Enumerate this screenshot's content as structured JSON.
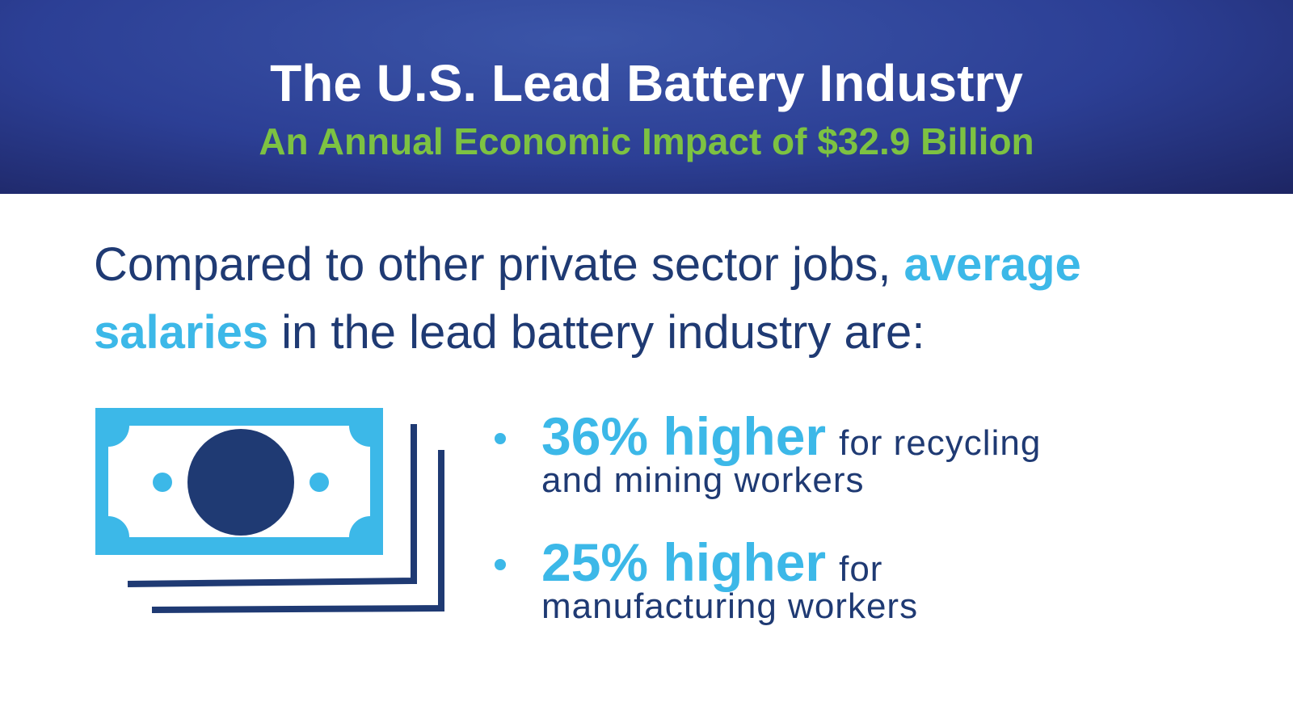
{
  "header": {
    "title": "The U.S. Lead Battery Industry",
    "subtitle": "An Annual Economic Impact of $32.9 Billion"
  },
  "intro": {
    "line1": "Compared to other private sector jobs,",
    "highlight1": "average",
    "highlight2": "salaries",
    "line2": "in the lead battery industry are:"
  },
  "bullets": [
    {
      "highlight": "36% higher",
      "line1": "for recycling",
      "line2": "and mining workers"
    },
    {
      "highlight": "25% higher",
      "line1": "for",
      "line2": "manufacturing workers"
    }
  ]
}
